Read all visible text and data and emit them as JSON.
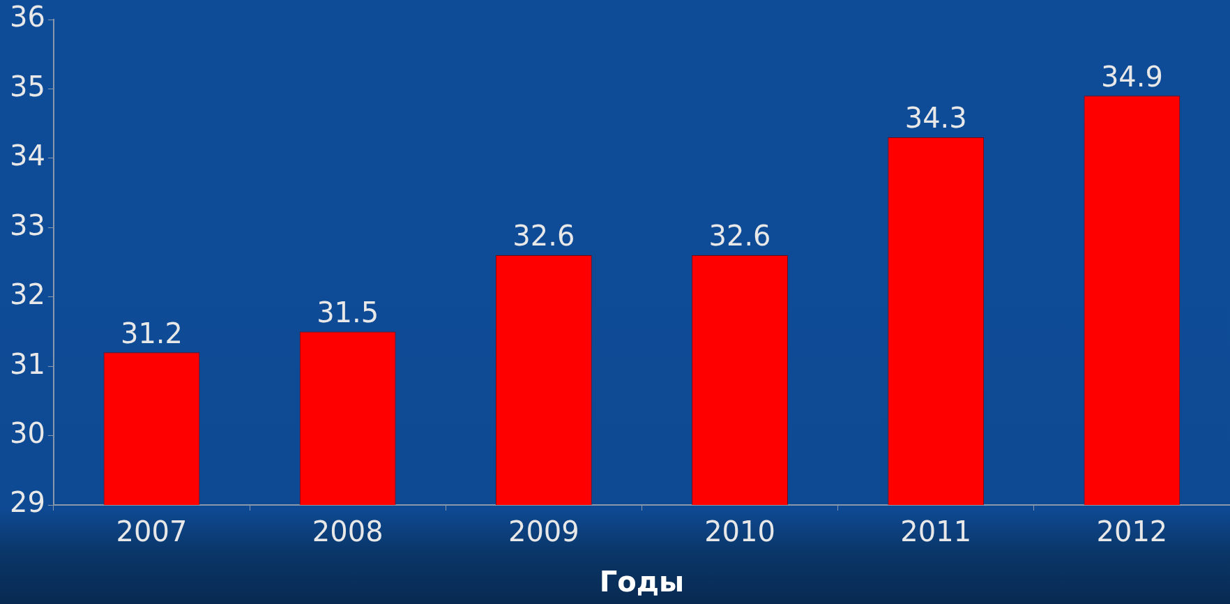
{
  "chart_data": {
    "type": "bar",
    "xlabel": "Годы",
    "categories": [
      "2007",
      "2008",
      "2009",
      "2010",
      "2011",
      "2012"
    ],
    "values": [
      31.2,
      31.5,
      32.6,
      32.6,
      34.3,
      34.9
    ],
    "color": "#ff0000",
    "ylim": [
      29,
      36
    ],
    "yticks": [
      29,
      30,
      31,
      32,
      33,
      34,
      35,
      36
    ],
    "data_labels": true
  }
}
